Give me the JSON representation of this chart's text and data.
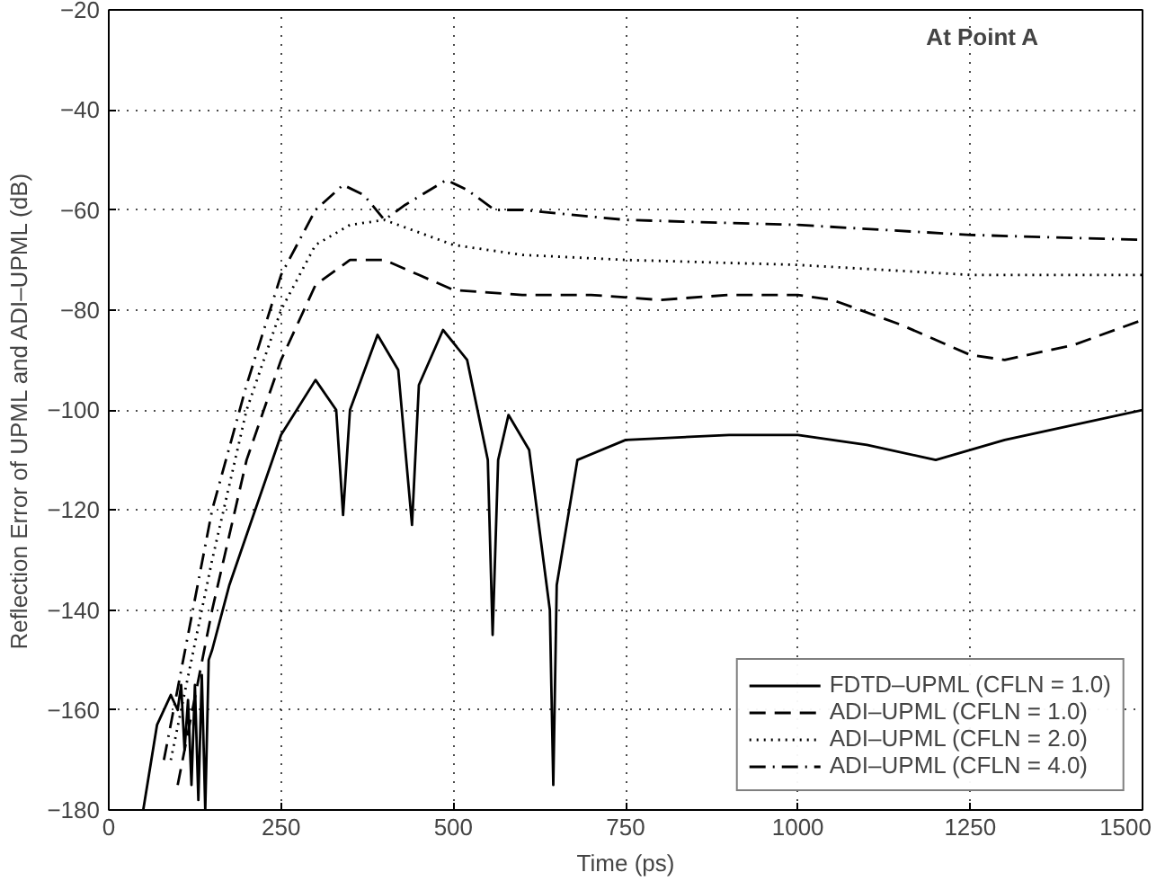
{
  "chart_data": {
    "type": "line",
    "xlabel": "Time (ps)",
    "ylabel": "Reflection Error of UPML and ADI–UPML (dB)",
    "annotations": [
      "At Point A"
    ],
    "xlim": [
      0,
      1500
    ],
    "ylim": [
      -180,
      -20
    ],
    "xticks": [
      0,
      250,
      500,
      750,
      1000,
      1250,
      1500
    ],
    "yticks": [
      -180,
      -160,
      -140,
      -120,
      -100,
      -80,
      -60,
      -40,
      -20
    ],
    "grid": true,
    "legend": "bottom right",
    "marker": "none",
    "series": [
      {
        "name": "FDTD–UPML (CFLN = 1.0)",
        "color": "#000000",
        "line_style": "solid",
        "x": [
          50,
          70,
          90,
          100,
          105,
          110,
          115,
          120,
          125,
          130,
          135,
          140,
          145,
          150,
          175,
          200,
          250,
          300,
          330,
          340,
          350,
          390,
          420,
          440,
          450,
          485,
          520,
          550,
          557,
          565,
          580,
          610,
          640,
          645,
          650,
          680,
          750,
          900,
          1000,
          1100,
          1200,
          1300,
          1500
        ],
        "values": [
          -180,
          -163,
          -157,
          -160,
          -155,
          -168,
          -158,
          -175,
          -155,
          -178,
          -153,
          -180,
          -150,
          -148,
          -135,
          -125,
          -105,
          -94,
          -100,
          -121,
          -100,
          -85,
          -92,
          -123,
          -95,
          -84,
          -90,
          -110,
          -145,
          -110,
          -101,
          -108,
          -140,
          -175,
          -135,
          -110,
          -106,
          -105,
          -105,
          -107,
          -110,
          -106,
          -100
        ]
      },
      {
        "name": "ADI–UPML (CFLN = 1.0)",
        "color": "#000000",
        "line_style": "dashed",
        "x": [
          100,
          150,
          200,
          250,
          300,
          350,
          400,
          450,
          500,
          600,
          700,
          800,
          900,
          1000,
          1050,
          1150,
          1250,
          1300,
          1400,
          1500
        ],
        "values": [
          -175,
          -140,
          -110,
          -90,
          -75,
          -70,
          -70,
          -73,
          -76,
          -77,
          -77,
          -78,
          -77,
          -77,
          -78,
          -83,
          -89,
          -90,
          -87,
          -82
        ]
      },
      {
        "name": "ADI–UPML (CFLN = 2.0)",
        "color": "#000000",
        "line_style": "dotted",
        "x": [
          90,
          150,
          200,
          250,
          300,
          350,
          400,
          500,
          600,
          750,
          1000,
          1250,
          1500
        ],
        "values": [
          -170,
          -130,
          -100,
          -80,
          -67,
          -63,
          -62,
          -67,
          -69,
          -70,
          -71,
          -73,
          -73
        ]
      },
      {
        "name": "ADI–UPML (CFLN = 4.0)",
        "color": "#000000",
        "line_style": "dashdot",
        "x": [
          80,
          150,
          200,
          250,
          300,
          340,
          370,
          400,
          430,
          490,
          520,
          560,
          600,
          750,
          1000,
          1250,
          1500
        ],
        "values": [
          -170,
          -120,
          -95,
          -73,
          -60,
          -55,
          -57,
          -62,
          -59,
          -54,
          -56,
          -60,
          -60,
          -62,
          -63,
          -65,
          -66
        ]
      }
    ]
  }
}
